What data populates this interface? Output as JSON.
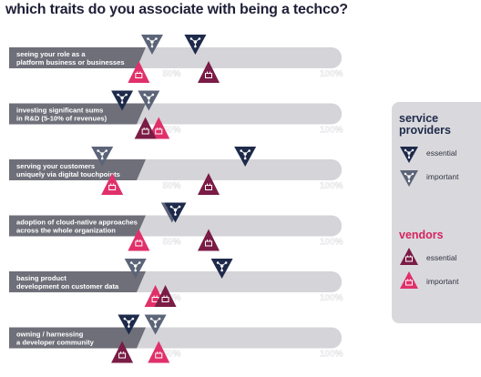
{
  "title": "which traits do you associate with being a techco?",
  "chart_data": {
    "type": "dot-range",
    "xlim": [
      0,
      100
    ],
    "tick_labels": [
      "50%",
      "100%"
    ],
    "groups": [
      {
        "name": "service providers",
        "key": "sp"
      },
      {
        "name": "vendors",
        "key": "v"
      }
    ],
    "series_labels": {
      "essential": "essential",
      "important": "important"
    },
    "colors": {
      "sp_essential": "#1e2a4a",
      "sp_important": "#5c6478",
      "v_essential": "#7a1c45",
      "v_important": "#e0306a",
      "bar": "#d5d5d9",
      "tick": "#ffffff",
      "label_bg": "#6f6f7a"
    },
    "categories": [
      "seeing your role as a platform business or businesses",
      "investing significant sums in R&D (5-10% of revenues)",
      "serving your customers uniquely via digital touchpoints",
      "adoption of cloud-native approaches across the whole organization",
      "basing product development on customer data",
      "owning / harnessing a developer community"
    ],
    "series": [
      {
        "name": "essential",
        "group": "service providers",
        "values": [
          56,
          34,
          71,
          50,
          64,
          36
        ]
      },
      {
        "name": "important",
        "group": "service providers",
        "values": [
          43,
          42,
          28,
          49,
          38,
          44
        ]
      },
      {
        "name": "essential",
        "group": "vendors",
        "values": [
          60,
          41,
          60,
          60,
          47,
          34
        ]
      },
      {
        "name": "important",
        "group": "vendors",
        "values": [
          39,
          45,
          31,
          39,
          44,
          45
        ]
      }
    ]
  },
  "legend": {
    "sp_title": "service providers",
    "sp_essential": "essential",
    "sp_important": "important",
    "v_title": "vendors",
    "v_essential": "essential",
    "v_important": "important"
  }
}
